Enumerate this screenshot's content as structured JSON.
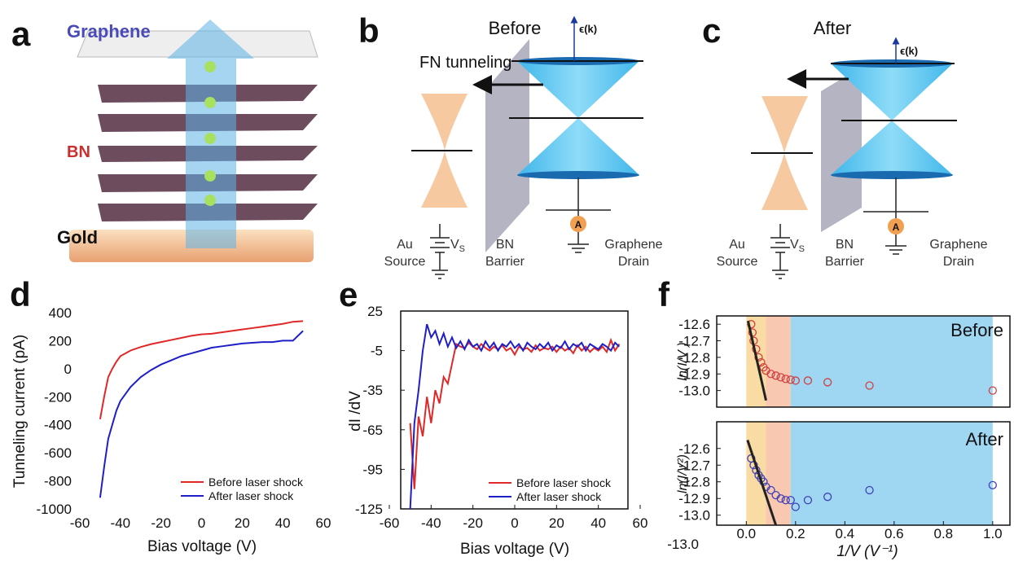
{
  "panel_a": {
    "label": "a",
    "graphene": "Graphene",
    "bn": "BN",
    "gold": "Gold"
  },
  "panel_b": {
    "label": "b",
    "title": "Before",
    "arrow_label": "FN tunneling",
    "energy_axis": "ϵ(k)",
    "source": [
      "Au",
      "Source"
    ],
    "voltage": "V",
    "voltage_sub": "S",
    "barrier": [
      "BN",
      "Barrier"
    ],
    "drain": [
      "Graphene",
      "Drain"
    ],
    "meter": "A"
  },
  "panel_c": {
    "label": "c",
    "title": "After",
    "energy_axis": "ϵ(k)",
    "source": [
      "Au",
      "Source"
    ],
    "voltage": "V",
    "voltage_sub": "S",
    "barrier": [
      "BN",
      "Barrier"
    ],
    "drain": [
      "Graphene",
      "Drain"
    ],
    "meter": "A"
  },
  "chart_data": [
    {
      "type": "line",
      "panel_label": "d",
      "xlabel": "Bias voltage (V)",
      "ylabel": "Tunneling current (pA)",
      "xlim": [
        -60,
        60
      ],
      "xticks": [
        -60,
        -40,
        -20,
        0,
        20,
        40,
        60
      ],
      "ylim": [
        -1000,
        400
      ],
      "yticks": [
        -1000,
        -800,
        -600,
        -400,
        -200,
        0,
        200,
        400
      ],
      "x": [
        -50,
        -48,
        -46,
        -44,
        -42,
        -40,
        -35,
        -30,
        -25,
        -20,
        -15,
        -10,
        -5,
        0,
        5,
        10,
        15,
        20,
        25,
        30,
        35,
        40,
        45,
        50
      ],
      "series": [
        {
          "name": "Before laser shock",
          "color": "#e02828",
          "values": [
            -360,
            -200,
            -60,
            0,
            50,
            90,
            130,
            155,
            175,
            190,
            205,
            220,
            235,
            245,
            250,
            260,
            270,
            280,
            290,
            300,
            310,
            320,
            335,
            340
          ]
        },
        {
          "name": "After laser shock",
          "color": "#1f1fc8",
          "values": [
            -920,
            -700,
            -500,
            -400,
            -300,
            -230,
            -130,
            -60,
            -10,
            30,
            60,
            90,
            110,
            130,
            150,
            160,
            170,
            180,
            185,
            190,
            190,
            200,
            200,
            270
          ]
        }
      ]
    },
    {
      "type": "line",
      "panel_label": "e",
      "xlabel": "Bias voltage (V)",
      "ylabel": "dI /dV",
      "xlim": [
        -60,
        60
      ],
      "xticks": [
        -60,
        -40,
        -20,
        0,
        20,
        40,
        60
      ],
      "ylim": [
        -125,
        25
      ],
      "yticks": [
        -125,
        -95,
        -65,
        -35,
        -5,
        25
      ],
      "x": [
        -50,
        -48,
        -46,
        -44,
        -42,
        -40,
        -38,
        -36,
        -34,
        -32,
        -30,
        -28,
        -26,
        -24,
        -22,
        -20,
        -18,
        -16,
        -14,
        -12,
        -10,
        -8,
        -6,
        -4,
        -2,
        0,
        2,
        4,
        6,
        8,
        10,
        12,
        14,
        16,
        18,
        20,
        22,
        24,
        26,
        28,
        30,
        32,
        34,
        36,
        38,
        40,
        42,
        44,
        46,
        48,
        50
      ],
      "series": [
        {
          "name": "Before laser shock",
          "color": "#e02828",
          "values": [
            -60,
            -110,
            -55,
            -70,
            -40,
            -60,
            -35,
            -45,
            -25,
            -30,
            -15,
            0,
            -2,
            -3,
            1,
            -2,
            -4,
            0,
            -3,
            -5,
            -2,
            -4,
            -1,
            -5,
            -3,
            -8,
            -2,
            -4,
            -3,
            -6,
            -1,
            -5,
            -3,
            -4,
            -2,
            -6,
            -2,
            -5,
            -3,
            -7,
            -1,
            -5,
            -2,
            -6,
            -3,
            -5,
            -2,
            -6,
            3,
            -5,
            0
          ]
        },
        {
          "name": "After laser shock",
          "color": "#1f1fc8",
          "values": [
            -125,
            -60,
            -35,
            -5,
            15,
            5,
            10,
            0,
            8,
            -2,
            5,
            -3,
            2,
            -4,
            3,
            -2,
            0,
            -5,
            2,
            -3,
            1,
            -5,
            0,
            -2,
            2,
            -3,
            0,
            -5,
            1,
            -2,
            -4,
            0,
            -3,
            1,
            -5,
            -1,
            -3,
            2,
            -4,
            0,
            -2,
            1,
            -5,
            0,
            -2,
            -4,
            0,
            -2,
            -5,
            1,
            -2
          ]
        }
      ]
    },
    {
      "type": "scatter",
      "panel_label": "f",
      "ylabel": "ln(I/V )",
      "annotation": "Before",
      "color": "#d04040",
      "xlim": [
        -0.12,
        1.07
      ],
      "ylim": [
        -13.1,
        -12.55
      ],
      "yticks": [
        -12.6,
        -12.7,
        -12.8,
        -12.9,
        {
          "value": -13,
          "label": "-13.0"
        }
      ],
      "regions": [
        {
          "from": 0,
          "to": 0.08,
          "color": "#f9dca4"
        },
        {
          "from": 0.08,
          "to": 0.18,
          "color": "#f8c8b0"
        },
        {
          "from": 0.18,
          "to": 1,
          "color": "#9fd6f2"
        }
      ],
      "x": [
        0.02,
        0.025,
        0.03,
        0.04,
        0.05,
        0.06,
        0.07,
        0.08,
        0.1,
        0.12,
        0.14,
        0.16,
        0.18,
        0.2,
        0.25,
        0.33,
        0.5,
        1
      ],
      "values": [
        -12.6,
        -12.65,
        -12.7,
        -12.75,
        -12.8,
        -12.83,
        -12.86,
        -12.88,
        -12.9,
        -12.91,
        -12.92,
        -12.93,
        -12.935,
        -12.94,
        -12.94,
        -12.95,
        -12.97,
        -13
      ],
      "fit": {
        "x": [
          0.007,
          0.08
        ],
        "y": [
          -12.58,
          -13.06
        ],
        "color": "#222222"
      }
    },
    {
      "type": "scatter",
      "ylabel": "ln(I/V²)",
      "annotation": "After",
      "color": "#4040b8",
      "xlabel": "1/V (V⁻¹)",
      "stray_label": "-13.0",
      "xlim": [
        -0.12,
        1.07
      ],
      "xticks": [
        {
          "value": 0,
          "label": "0.0"
        },
        0.2,
        0.4,
        0.6,
        0.8,
        {
          "value": 1,
          "label": "1.0"
        }
      ],
      "ylim": [
        -13.06,
        -12.44
      ],
      "yticks": [
        -12.6,
        -12.7,
        -12.8,
        -12.9,
        {
          "value": -13,
          "label": "-13.0"
        }
      ],
      "regions": [
        {
          "from": 0,
          "to": 0.08,
          "color": "#f9dca4"
        },
        {
          "from": 0.08,
          "to": 0.18,
          "color": "#f8c8b0"
        },
        {
          "from": 0.18,
          "to": 1,
          "color": "#9fd6f2"
        }
      ],
      "x": [
        0.02,
        0.03,
        0.04,
        0.05,
        0.06,
        0.07,
        0.08,
        0.1,
        0.12,
        0.14,
        0.16,
        0.18,
        0.2,
        0.25,
        0.33,
        0.5,
        1
      ],
      "values": [
        -12.66,
        -12.7,
        -12.73,
        -12.76,
        -12.78,
        -12.8,
        -12.83,
        -12.85,
        -12.88,
        -12.9,
        -12.91,
        -12.91,
        -12.95,
        -12.91,
        -12.89,
        -12.85,
        -12.82
      ],
      "fit": {
        "x": [
          0.005,
          0.12
        ],
        "y": [
          -12.55,
          -13.06
        ],
        "color": "#222222"
      }
    }
  ]
}
